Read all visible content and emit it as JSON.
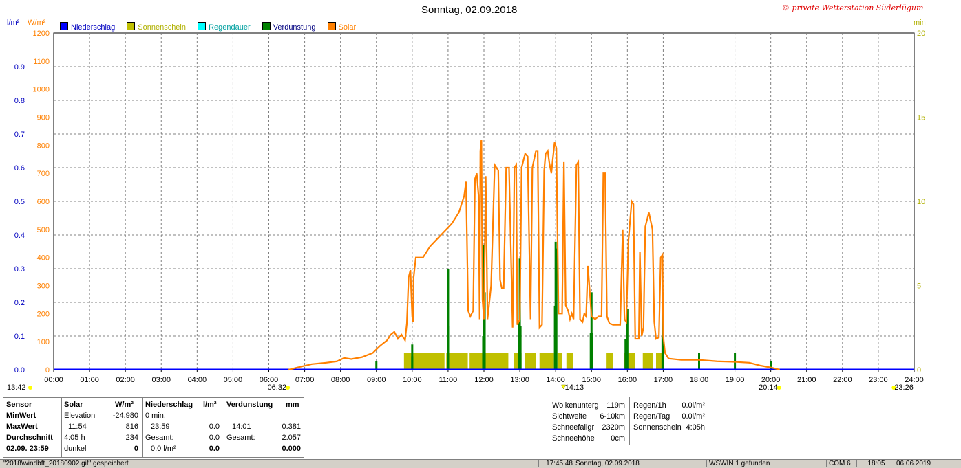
{
  "title": "Sonntag, 02.09.2018",
  "copyright": "© private Wetterstation Süderlügum",
  "axis_units": {
    "left1": "l/m²",
    "left2": "W/m²",
    "right": "min"
  },
  "legend": [
    {
      "label": "Niederschlag",
      "color": "#0000ff",
      "text_color": "#0000c0"
    },
    {
      "label": "Sonnenschein",
      "color": "#c0c000",
      "text_color": "#b0b000"
    },
    {
      "label": "Regendauer",
      "color": "#00ffff",
      "text_color": "#00a0a0"
    },
    {
      "label": "Verdunstung",
      "color": "#008000",
      "text_color": "#000080"
    },
    {
      "label": "Solar",
      "color": "#ff8000",
      "text_color": "#ff8000"
    }
  ],
  "markers": {
    "left_time": "13:42",
    "sunrise": "06:32",
    "solar_max": "14:13",
    "sunset": "20:14",
    "right_time": "23:26"
  },
  "chart_data": {
    "type": "line",
    "x_ticks": [
      "00:00",
      "01:00",
      "02:00",
      "03:00",
      "04:00",
      "05:00",
      "06:00",
      "07:00",
      "08:00",
      "09:00",
      "10:00",
      "11:00",
      "12:00",
      "13:00",
      "14:00",
      "15:00",
      "16:00",
      "17:00",
      "18:00",
      "19:00",
      "20:00",
      "21:00",
      "22:00",
      "23:00",
      "24:00"
    ],
    "y_left_precip_ticks": [
      "0.0",
      "0.1",
      "0.2",
      "0.3",
      "0.4",
      "0.5",
      "0.6",
      "0.7",
      "0.8",
      "0.9"
    ],
    "y_left_solar_ticks": [
      "0",
      "100",
      "200",
      "300",
      "400",
      "500",
      "600",
      "700",
      "800",
      "900",
      "1000",
      "1100",
      "1200"
    ],
    "y_right_ticks": [
      "0",
      "5",
      "10",
      "15",
      "20"
    ],
    "ylim_solar": [
      0,
      1200
    ],
    "ylim_precip": [
      0,
      1.0
    ],
    "ylim_minutes": [
      0,
      20
    ],
    "grid": true,
    "series": [
      {
        "name": "Solar",
        "color": "#ff8000",
        "points": [
          [
            6.55,
            0
          ],
          [
            6.8,
            8
          ],
          [
            7.2,
            20
          ],
          [
            7.6,
            25
          ],
          [
            7.9,
            30
          ],
          [
            8.1,
            42
          ],
          [
            8.3,
            38
          ],
          [
            8.6,
            45
          ],
          [
            8.9,
            60
          ],
          [
            9.1,
            85
          ],
          [
            9.3,
            105
          ],
          [
            9.4,
            125
          ],
          [
            9.5,
            135
          ],
          [
            9.6,
            110
          ],
          [
            9.7,
            125
          ],
          [
            9.8,
            105
          ],
          [
            9.85,
            165
          ],
          [
            9.9,
            330
          ],
          [
            9.95,
            355
          ],
          [
            10.0,
            190
          ],
          [
            10.02,
            170
          ],
          [
            10.04,
            330
          ],
          [
            10.1,
            400
          ],
          [
            10.3,
            400
          ],
          [
            10.5,
            440
          ],
          [
            10.8,
            480
          ],
          [
            11.1,
            520
          ],
          [
            11.3,
            560
          ],
          [
            11.45,
            620
          ],
          [
            11.5,
            670
          ],
          [
            11.56,
            210
          ],
          [
            11.62,
            190
          ],
          [
            11.7,
            210
          ],
          [
            11.75,
            680
          ],
          [
            11.8,
            700
          ],
          [
            11.85,
            620
          ],
          [
            11.88,
            180
          ],
          [
            11.9,
            780
          ],
          [
            11.93,
            820
          ],
          [
            11.96,
            250
          ],
          [
            12.0,
            180
          ],
          [
            12.05,
            690
          ],
          [
            12.1,
            180
          ],
          [
            12.2,
            300
          ],
          [
            12.3,
            730
          ],
          [
            12.4,
            710
          ],
          [
            12.45,
            320
          ],
          [
            12.5,
            290
          ],
          [
            12.55,
            290
          ],
          [
            12.62,
            720
          ],
          [
            12.7,
            720
          ],
          [
            12.8,
            150
          ],
          [
            12.85,
            720
          ],
          [
            12.9,
            730
          ],
          [
            12.93,
            160
          ],
          [
            13.0,
            180
          ],
          [
            13.05,
            720
          ],
          [
            13.15,
            770
          ],
          [
            13.22,
            760
          ],
          [
            13.3,
            180
          ],
          [
            13.35,
            720
          ],
          [
            13.45,
            780
          ],
          [
            13.5,
            780
          ],
          [
            13.55,
            150
          ],
          [
            13.62,
            160
          ],
          [
            13.68,
            710
          ],
          [
            13.72,
            770
          ],
          [
            13.78,
            780
          ],
          [
            13.82,
            740
          ],
          [
            13.88,
            700
          ],
          [
            13.92,
            750
          ],
          [
            13.97,
            810
          ],
          [
            14.02,
            790
          ],
          [
            14.08,
            200
          ],
          [
            14.18,
            200
          ],
          [
            14.23,
            740
          ],
          [
            14.28,
            230
          ],
          [
            14.35,
            210
          ],
          [
            14.4,
            180
          ],
          [
            14.45,
            200
          ],
          [
            14.5,
            180
          ],
          [
            14.58,
            730
          ],
          [
            14.63,
            740
          ],
          [
            14.68,
            180
          ],
          [
            14.75,
            170
          ],
          [
            14.8,
            200
          ],
          [
            14.85,
            190
          ],
          [
            14.9,
            370
          ],
          [
            15.0,
            190
          ],
          [
            15.1,
            180
          ],
          [
            15.2,
            190
          ],
          [
            15.28,
            190
          ],
          [
            15.33,
            700
          ],
          [
            15.38,
            700
          ],
          [
            15.43,
            190
          ],
          [
            15.5,
            165
          ],
          [
            15.6,
            160
          ],
          [
            15.7,
            160
          ],
          [
            15.8,
            160
          ],
          [
            15.87,
            500
          ],
          [
            15.92,
            180
          ],
          [
            15.97,
            170
          ],
          [
            16.03,
            460
          ],
          [
            16.12,
            600
          ],
          [
            16.17,
            590
          ],
          [
            16.22,
            110
          ],
          [
            16.32,
            110
          ],
          [
            16.35,
            420
          ],
          [
            16.4,
            120
          ],
          [
            16.45,
            150
          ],
          [
            16.5,
            510
          ],
          [
            16.6,
            560
          ],
          [
            16.7,
            500
          ],
          [
            16.75,
            170
          ],
          [
            16.8,
            110
          ],
          [
            16.88,
            115
          ],
          [
            16.93,
            400
          ],
          [
            16.98,
            410
          ],
          [
            17.0,
            120
          ],
          [
            17.05,
            60
          ],
          [
            17.15,
            40
          ],
          [
            17.5,
            35
          ],
          [
            18.0,
            35
          ],
          [
            18.5,
            30
          ],
          [
            19.0,
            28
          ],
          [
            19.4,
            25
          ],
          [
            19.7,
            15
          ],
          [
            20.0,
            8
          ],
          [
            20.2,
            2
          ],
          [
            20.25,
            0
          ]
        ]
      },
      {
        "name": "Sonnenschein",
        "color": "#c0c000",
        "bars": [
          [
            9.77,
            10.9
          ],
          [
            10.95,
            11.55
          ],
          [
            11.6,
            12.68
          ],
          [
            12.83,
            13.05
          ],
          [
            13.15,
            13.45
          ],
          [
            13.55,
            13.95
          ],
          [
            14.05,
            14.18
          ],
          [
            14.3,
            14.48
          ],
          [
            15.42,
            15.6
          ],
          [
            15.9,
            16.22
          ],
          [
            16.43,
            16.72
          ],
          [
            16.8,
            17.0
          ]
        ]
      },
      {
        "name": "Verdunstung",
        "color": "#008000",
        "bars": [
          [
            9.0,
            0.025
          ],
          [
            10.0,
            0.04
          ],
          [
            10.0,
            0.075
          ],
          [
            11.0,
            0.13
          ],
          [
            11.0,
            0.3
          ],
          [
            11.98,
            0.1
          ],
          [
            12.0,
            0.37
          ],
          [
            12.02,
            0.23
          ],
          [
            12.98,
            0.14
          ],
          [
            13.0,
            0.33
          ],
          [
            13.02,
            0.13
          ],
          [
            13.98,
            0.19
          ],
          [
            14.0,
            0.38
          ],
          [
            14.02,
            0.36
          ],
          [
            14.98,
            0.11
          ],
          [
            15.0,
            0.23
          ],
          [
            15.02,
            0.11
          ],
          [
            15.95,
            0.09
          ],
          [
            16.0,
            0.18
          ],
          [
            16.98,
            0.1
          ],
          [
            17.0,
            0.23
          ],
          [
            18.0,
            0.05
          ],
          [
            19.0,
            0.05
          ],
          [
            20.0,
            0.025
          ]
        ]
      },
      {
        "name": "Niederschlag",
        "color": "#0000ff",
        "points": [
          [
            0,
            0
          ],
          [
            24,
            0
          ]
        ]
      }
    ]
  },
  "stats": {
    "headers": {
      "sensor": "Sensor",
      "solar": "Solar",
      "solar_unit": "W/m²",
      "niederschlag": "Niederschlag",
      "niederschlag_unit": "l/m²",
      "verdunstung": "Verdunstung",
      "verdunstung_unit": "mm"
    },
    "row_labels": [
      "MinWert",
      "MaxWert",
      "Durchschnitt",
      "02.09. 23:59"
    ],
    "solar": [
      [
        "Elevation",
        "-24.980"
      ],
      [
        "11:54",
        "816"
      ],
      [
        "4:05 h",
        "234"
      ],
      [
        "dunkel",
        "0"
      ]
    ],
    "niederschlag": [
      [
        "0 min.",
        ""
      ],
      [
        "23:59",
        "0.0"
      ],
      [
        "Gesamt:",
        "0.0"
      ],
      [
        "0.0 l/m²",
        "0.0"
      ]
    ],
    "verdunstung": [
      [
        "",
        ""
      ],
      [
        "14:01",
        "0.381"
      ],
      [
        "Gesamt:",
        "2.057"
      ],
      [
        "",
        "0.000"
      ]
    ]
  },
  "weather": {
    "left": [
      [
        "Wolkenunterg",
        "119m"
      ],
      [
        "Sichtweite",
        "6-10km"
      ],
      [
        "Schneefallgr",
        "2320m"
      ],
      [
        "Schneehöhe",
        "0cm"
      ]
    ],
    "right": [
      [
        "Regen/1h",
        "0.0l/m²"
      ],
      [
        "Regen/Tag",
        "0.0l/m²"
      ],
      [
        "Sonnenschein",
        "4:05h"
      ]
    ]
  },
  "statusbar": {
    "message": "\"2018\\windbft_20180902.gif\" gespeichert",
    "time": "17:45:48",
    "date": "Sonntag, 02.09.2018",
    "station": "WSWIN 1 gefunden",
    "port": "COM 6",
    "clock": "18:05",
    "today": "06.06.2019"
  }
}
